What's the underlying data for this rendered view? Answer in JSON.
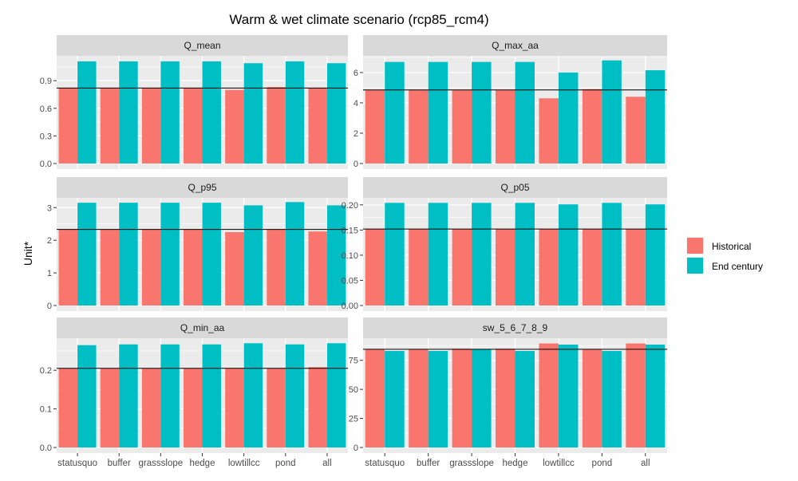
{
  "chart_data": {
    "type": "bar",
    "title": "Warm & wet climate scenario (rcp85_rcm4)",
    "ylabel": "Unit*",
    "xlabel": "",
    "legend": {
      "placement": "right",
      "entries": [
        "Historical",
        "End century"
      ]
    },
    "colors": {
      "Historical": "#F8766D",
      "End century": "#00BFC4",
      "panel_bg": "#EBEBEB",
      "strip_bg": "#D9D9D9",
      "reference_line": "#000000"
    },
    "grid": true,
    "categories": [
      "statusquo",
      "buffer",
      "grassslope",
      "hedge",
      "lowtillcc",
      "pond",
      "all"
    ],
    "panels": [
      {
        "name": "Q_mean",
        "ylim": [
          0,
          1.17
        ],
        "yticks": [
          0.0,
          0.3,
          0.6,
          0.9
        ],
        "tick_labels": [
          "0.0",
          "0.3",
          "0.6",
          "0.9"
        ],
        "reference_line": 0.82,
        "series": [
          {
            "name": "Historical",
            "values": [
              0.82,
              0.82,
              0.82,
              0.82,
              0.8,
              0.83,
              0.82
            ]
          },
          {
            "name": "End century",
            "values": [
              1.11,
              1.11,
              1.11,
              1.11,
              1.09,
              1.11,
              1.09
            ]
          }
        ]
      },
      {
        "name": "Q_max_aa",
        "ylim": [
          0,
          7.1
        ],
        "yticks": [
          0,
          2,
          4,
          6
        ],
        "tick_labels": [
          "0",
          "2",
          "4",
          "6"
        ],
        "reference_line": 4.85,
        "series": [
          {
            "name": "Historical",
            "values": [
              4.85,
              4.85,
              4.85,
              4.85,
              4.3,
              4.9,
              4.4
            ]
          },
          {
            "name": "End century",
            "values": [
              6.7,
              6.7,
              6.7,
              6.7,
              6.0,
              6.8,
              6.15
            ]
          }
        ]
      },
      {
        "name": "Q_p95",
        "ylim": [
          0,
          3.3
        ],
        "yticks": [
          0,
          1,
          2,
          3
        ],
        "tick_labels": [
          "0",
          "1",
          "2",
          "3"
        ],
        "reference_line": 2.33,
        "series": [
          {
            "name": "Historical",
            "values": [
              2.33,
              2.33,
              2.33,
              2.33,
              2.25,
              2.33,
              2.27
            ]
          },
          {
            "name": "End century",
            "values": [
              3.15,
              3.15,
              3.15,
              3.15,
              3.07,
              3.17,
              3.07
            ]
          }
        ]
      },
      {
        "name": "Q_p05",
        "ylim": [
          0,
          0.214
        ],
        "yticks": [
          0.0,
          0.05,
          0.1,
          0.15,
          0.2
        ],
        "tick_labels": [
          "0.00",
          "0.05",
          "0.10",
          "0.15",
          "0.20"
        ],
        "reference_line": 0.152,
        "series": [
          {
            "name": "Historical",
            "values": [
              0.152,
              0.152,
              0.152,
              0.152,
              0.152,
              0.152,
              0.152
            ]
          },
          {
            "name": "End century",
            "values": [
              0.204,
              0.204,
              0.204,
              0.204,
              0.201,
              0.204,
              0.201
            ]
          }
        ]
      },
      {
        "name": "Q_min_aa",
        "ylim": [
          0,
          0.283
        ],
        "yticks": [
          0.0,
          0.1,
          0.2
        ],
        "tick_labels": [
          "0.0",
          "0.1",
          "0.2"
        ],
        "reference_line": 0.205,
        "series": [
          {
            "name": "Historical",
            "values": [
              0.205,
              0.205,
              0.205,
              0.205,
              0.206,
              0.205,
              0.208
            ]
          },
          {
            "name": "End century",
            "values": [
              0.265,
              0.267,
              0.267,
              0.267,
              0.27,
              0.267,
              0.27
            ]
          }
        ]
      },
      {
        "name": "sw_5_6_7_8_9",
        "ylim": [
          0,
          94
        ],
        "yticks": [
          0,
          25,
          50,
          75
        ],
        "tick_labels": [
          "0",
          "25",
          "50",
          "75"
        ],
        "reference_line": 84.5,
        "series": [
          {
            "name": "Historical",
            "values": [
              84.5,
              84.5,
              85,
              85,
              89.5,
              84.5,
              89.5
            ]
          },
          {
            "name": "End century",
            "values": [
              83,
              83,
              84.5,
              83,
              88.5,
              83,
              88.5
            ]
          }
        ]
      }
    ]
  }
}
